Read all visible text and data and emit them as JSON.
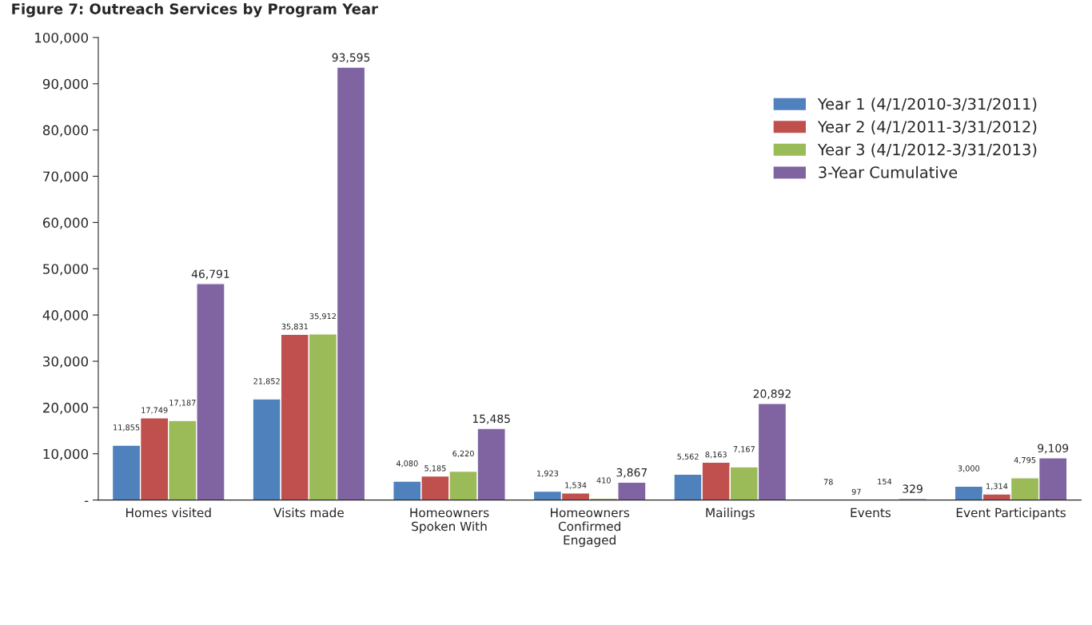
{
  "chart_data": {
    "type": "bar",
    "title": "Figure 7: Outreach Services by Program Year",
    "categories": [
      "Homes visited",
      "Visits made",
      "Homeowners\nSpoken With",
      "Homeowners\nConfirmed\nEngaged",
      "Mailings",
      "Events",
      "Event Participants"
    ],
    "series": [
      {
        "name": "Year 1 (4/1/2010-3/31/2011)",
        "color": "#4f81bd",
        "values": [
          11855,
          21852,
          4080,
          1923,
          5562,
          78,
          3000
        ],
        "value_labels": [
          "11,855",
          "21,852",
          "4,080",
          "1,923",
          "5,562",
          "78",
          "3,000"
        ]
      },
      {
        "name": "Year 2 (4/1/2011-3/31/2012)",
        "color": "#c0504d",
        "values": [
          17749,
          35831,
          5185,
          1534,
          8163,
          97,
          1314
        ],
        "value_labels": [
          "17,749",
          "35,831",
          "5,185",
          "1,534",
          "8,163",
          "97",
          "1,314"
        ]
      },
      {
        "name": "Year 3 (4/1/2012-3/31/2013)",
        "color": "#9bbb59",
        "values": [
          17187,
          35912,
          6220,
          410,
          7167,
          154,
          4795
        ],
        "value_labels": [
          "17,187",
          "35,912",
          "6,220",
          "410",
          "7,167",
          "154",
          "4,795"
        ]
      },
      {
        "name": "3-Year Cumulative",
        "color": "#8064a2",
        "values": [
          46791,
          93595,
          15485,
          3867,
          20892,
          329,
          9109
        ],
        "value_labels": [
          "46,791",
          "93,595",
          "15,485",
          "3,867",
          "20,892",
          "329",
          "9,109"
        ]
      }
    ],
    "ylim": [
      0,
      100000
    ],
    "yticks": [
      {
        "value": 0,
        "label": "-"
      },
      {
        "value": 10000,
        "label": "10,000"
      },
      {
        "value": 20000,
        "label": "20,000"
      },
      {
        "value": 30000,
        "label": "30,000"
      },
      {
        "value": 40000,
        "label": "40,000"
      },
      {
        "value": 50000,
        "label": "50,000"
      },
      {
        "value": 60000,
        "label": "60,000"
      },
      {
        "value": 70000,
        "label": "70,000"
      },
      {
        "value": 80000,
        "label": "80,000"
      },
      {
        "value": 90000,
        "label": "90,000"
      },
      {
        "value": 100000,
        "label": "100,000"
      }
    ],
    "legend": "top right",
    "grid": false
  }
}
